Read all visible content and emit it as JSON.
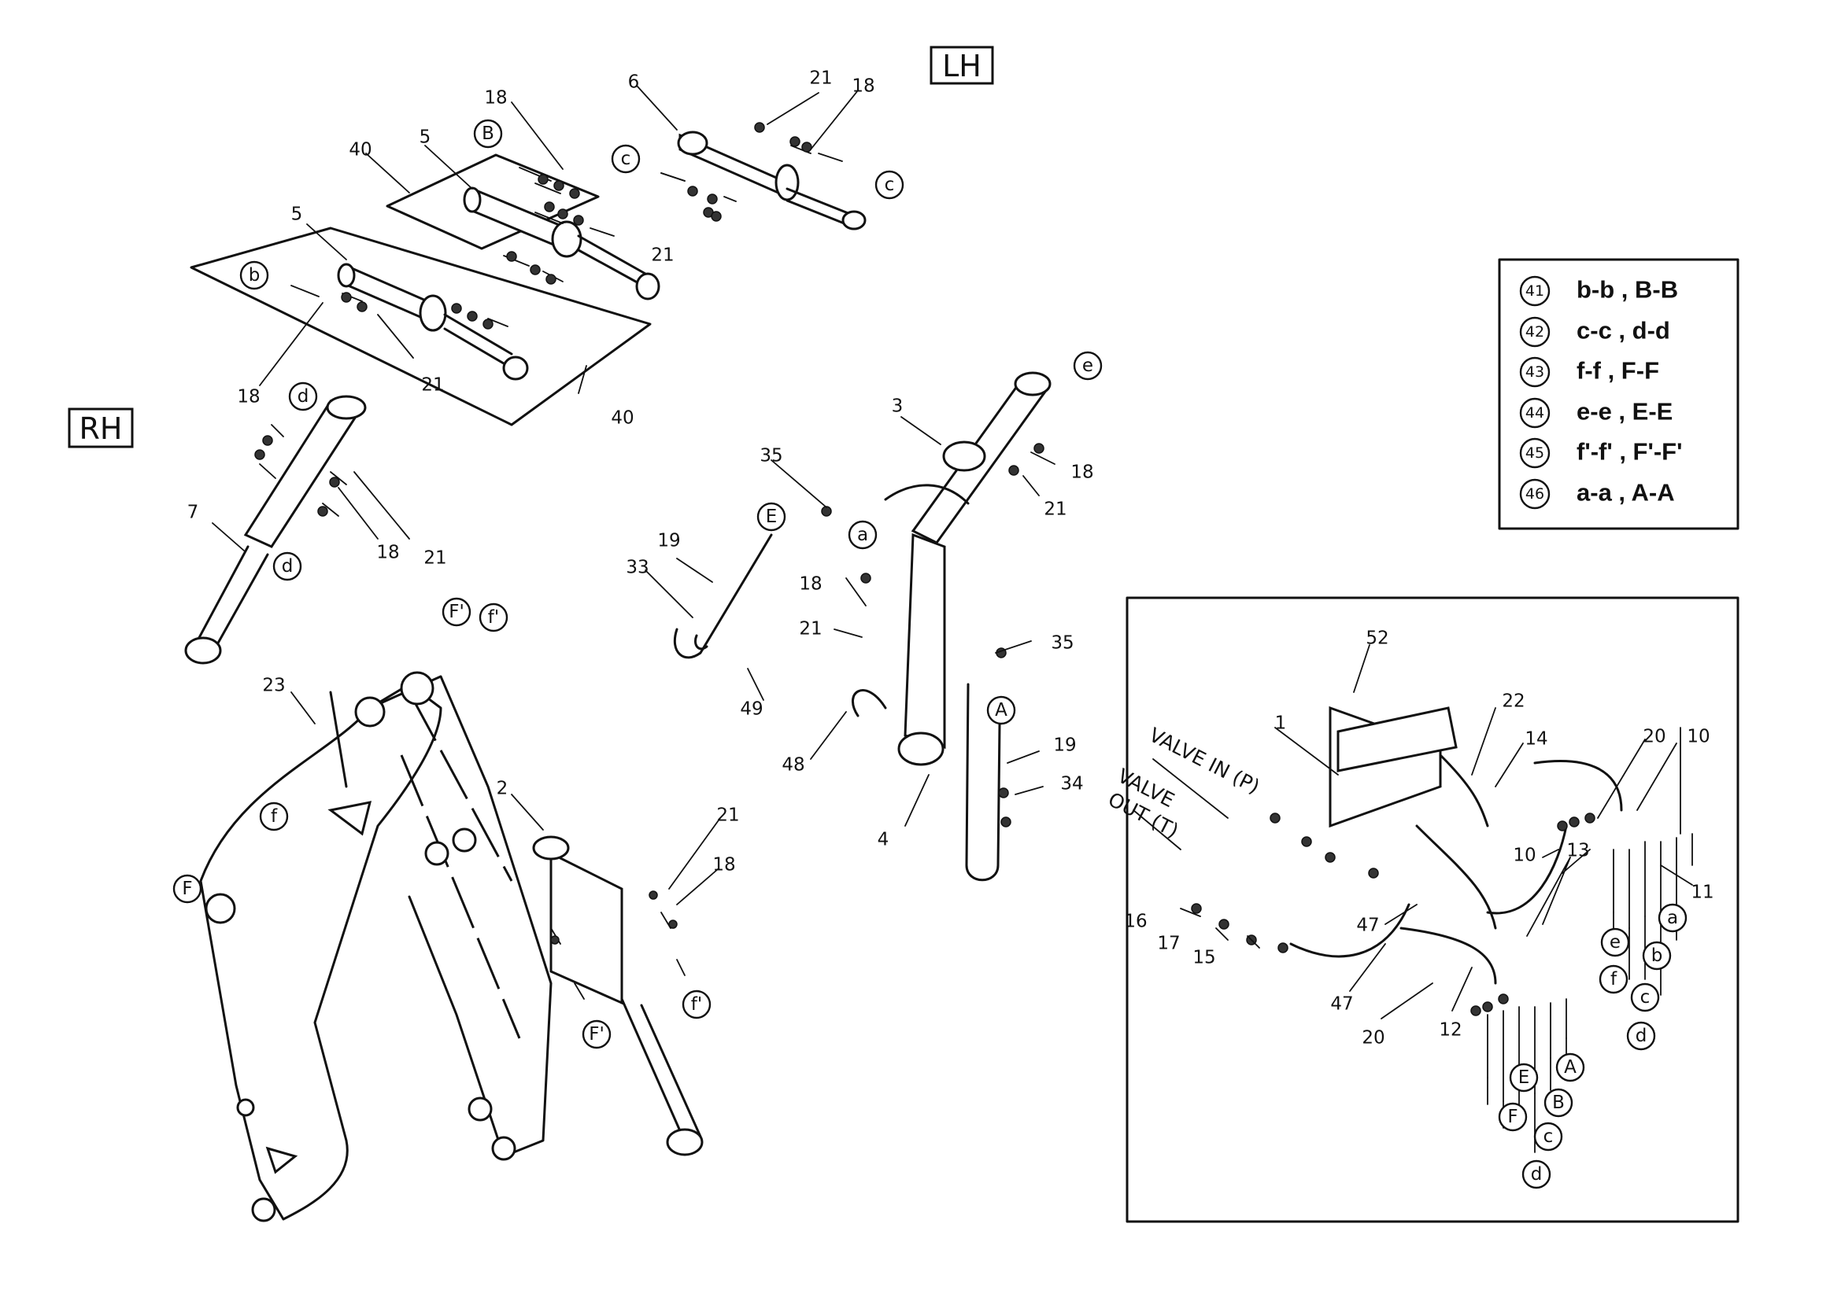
{
  "side_labels": {
    "lh": "LH",
    "rh": "RH"
  },
  "valve_labels": {
    "in": "VALVE IN (P)",
    "out_line1": "VALVE",
    "out_line2": "OUT (T)"
  },
  "legend": [
    {
      "num": "41",
      "text": "b-b , B-B"
    },
    {
      "num": "42",
      "text": "c-c , d-d"
    },
    {
      "num": "43",
      "text": "f-f , F-F"
    },
    {
      "num": "44",
      "text": "e-e , E-E"
    },
    {
      "num": "45",
      "text": "f'-f' , F'-F'"
    },
    {
      "num": "46",
      "text": "a-a , A-A"
    }
  ],
  "callouts": [
    {
      "t": "6"
    },
    {
      "t": "21"
    },
    {
      "t": "18"
    },
    {
      "t": "18"
    },
    {
      "t": "40"
    },
    {
      "t": "5"
    },
    {
      "t": "21"
    },
    {
      "t": "5"
    },
    {
      "t": "21"
    },
    {
      "t": "40"
    },
    {
      "t": "18"
    },
    {
      "t": "7"
    },
    {
      "t": "18"
    },
    {
      "t": "21"
    },
    {
      "t": "3"
    },
    {
      "t": "35"
    },
    {
      "t": "18"
    },
    {
      "t": "21"
    },
    {
      "t": "19"
    },
    {
      "t": "33"
    },
    {
      "t": "18"
    },
    {
      "t": "21"
    },
    {
      "t": "35"
    },
    {
      "t": "49"
    },
    {
      "t": "48"
    },
    {
      "t": "4"
    },
    {
      "t": "19"
    },
    {
      "t": "34"
    },
    {
      "t": "23"
    },
    {
      "t": "2"
    },
    {
      "t": "21"
    },
    {
      "t": "18"
    },
    {
      "t": "52"
    },
    {
      "t": "1"
    },
    {
      "t": "22"
    },
    {
      "t": "14"
    },
    {
      "t": "20"
    },
    {
      "t": "10"
    },
    {
      "t": "10"
    },
    {
      "t": "11"
    },
    {
      "t": "13"
    },
    {
      "t": "47"
    },
    {
      "t": "16"
    },
    {
      "t": "17"
    },
    {
      "t": "15"
    },
    {
      "t": "47"
    },
    {
      "t": "20"
    },
    {
      "t": "12"
    }
  ],
  "markers": [
    {
      "t": "B"
    },
    {
      "t": "c"
    },
    {
      "t": "c"
    },
    {
      "t": "b"
    },
    {
      "t": "d"
    },
    {
      "t": "d"
    },
    {
      "t": "e"
    },
    {
      "t": "E"
    },
    {
      "t": "a"
    },
    {
      "t": "A"
    },
    {
      "t": "F'"
    },
    {
      "t": "f'"
    },
    {
      "t": "f"
    },
    {
      "t": "F"
    },
    {
      "t": "F'"
    },
    {
      "t": "f'"
    },
    {
      "t": "a"
    },
    {
      "t": "b"
    },
    {
      "t": "e"
    },
    {
      "t": "f"
    },
    {
      "t": "c"
    },
    {
      "t": "d"
    },
    {
      "t": "A"
    },
    {
      "t": "E"
    },
    {
      "t": "B"
    },
    {
      "t": "F"
    },
    {
      "t": "c"
    },
    {
      "t": "d"
    }
  ]
}
